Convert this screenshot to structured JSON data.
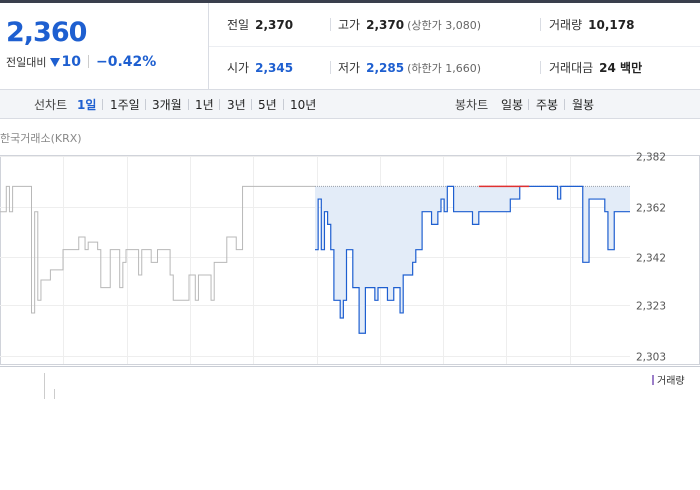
{
  "quote": {
    "price": "2,360",
    "change_label": "전일대비",
    "change_value": "10",
    "change_pct": "−0.42%",
    "prev_close": {
      "label": "전일",
      "value": "2,370"
    },
    "high": {
      "label": "고가",
      "value": "2,370",
      "sub": "(상한가 3,080)"
    },
    "volume": {
      "label": "거래량",
      "value": "10,178"
    },
    "open": {
      "label": "시가",
      "value": "2,345"
    },
    "low": {
      "label": "저가",
      "value": "2,285",
      "sub": "(하한가 1,660)"
    },
    "amount": {
      "label": "거래대금",
      "value": "24 백만"
    }
  },
  "tabs": {
    "line_title": "선차트",
    "line_items": [
      "1일",
      "1주일",
      "3개월",
      "1년",
      "3년",
      "5년",
      "10년"
    ],
    "active": "1일",
    "candle_title": "봉차트",
    "candle_items": [
      "일봉",
      "주봉",
      "월봉"
    ]
  },
  "source_label": "한국거래소(KRX)",
  "volume_legend": "거래량",
  "colors": {
    "blue": "#1e5fd0",
    "up": "#e03030",
    "prev_day": "#b8b8b8",
    "fill": "#e3ecf8",
    "volume": "#9c7fc9"
  },
  "chart_data": {
    "type": "line",
    "title": "",
    "y_ticks": [
      "2,382",
      "2,362",
      "2,342",
      "2,323",
      "2,303"
    ],
    "ylim": [
      2303,
      2382
    ],
    "grid": true,
    "reference_line": 2370,
    "series": [
      {
        "x": [
          0,
          2,
          3,
          4,
          10,
          11,
          12,
          13,
          15,
          16,
          18,
          20,
          24,
          25,
          27,
          28,
          31,
          32,
          33,
          35,
          38,
          39,
          40,
          43,
          44,
          45,
          48,
          49,
          50,
          53,
          54,
          55,
          59,
          60,
          62,
          63,
          66,
          67,
          68,
          72,
          75,
          77,
          79,
          80,
          84,
          89,
          92,
          95,
          98,
          99,
          100
        ],
        "y": [
          2360,
          2370,
          2360,
          2370,
          2320,
          2360,
          2325,
          2333,
          2333,
          2337,
          2337,
          2345,
          2345,
          2350,
          2345,
          2348,
          2345,
          2330,
          2330,
          2345,
          2330,
          2340,
          2345,
          2345,
          2335,
          2345,
          2340,
          2340,
          2345,
          2345,
          2335,
          2325,
          2325,
          2335,
          2325,
          2335,
          2335,
          2325,
          2340,
          2350,
          2345,
          2370,
          2370,
          2370,
          2370,
          2370,
          2370,
          2370,
          2370,
          2370,
          2370
        ]
      },
      {
        "x": [
          100,
          101,
          102,
          103,
          104,
          105,
          106,
          108,
          109,
          110,
          112,
          114,
          116,
          117,
          119,
          120,
          123,
          125,
          126,
          127,
          128,
          129,
          131,
          132,
          134,
          136,
          137,
          139,
          140,
          141,
          142,
          144,
          145,
          146,
          148,
          150,
          152,
          153,
          155,
          160,
          162,
          165,
          166,
          170,
          174,
          176,
          177,
          178,
          180,
          183,
          185,
          187,
          189,
          191,
          192,
          193,
          195,
          197,
          199,
          200
        ],
        "y": [
          2345,
          2365,
          2345,
          2360,
          2355,
          2345,
          2325,
          2318,
          2325,
          2345,
          2330,
          2312,
          2330,
          2330,
          2325,
          2330,
          2325,
          2330,
          2330,
          2320,
          2335,
          2335,
          2340,
          2345,
          2360,
          2360,
          2355,
          2360,
          2365,
          2360,
          2370,
          2360,
          2360,
          2360,
          2360,
          2355,
          2360,
          2360,
          2360,
          2360,
          2365,
          2370,
          2370,
          2370,
          2370,
          2370,
          2365,
          2370,
          2370,
          2370,
          2340,
          2365,
          2365,
          2365,
          2360,
          2345,
          2360,
          2360,
          2360,
          2360
        ]
      }
    ]
  }
}
